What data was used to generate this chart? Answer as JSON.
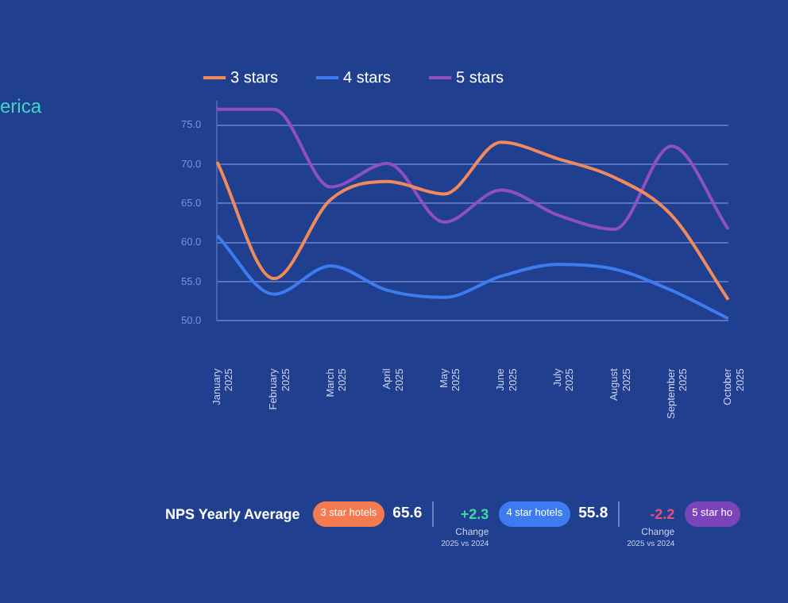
{
  "chart_data": [
    {
      "type": "other",
      "title": "erica"
    },
    {
      "type": "line",
      "categories": [
        "January 2025",
        "February 2025",
        "March 2025",
        "April 2025",
        "May 2025",
        "June 2025",
        "July 2025",
        "August 2025",
        "September 2025",
        "October 2025"
      ],
      "series": [
        {
          "name": "3 stars",
          "color": "#f08a5d",
          "values": [
            70.3,
            55.4,
            65.5,
            67.8,
            66.2,
            72.8,
            70.7,
            68.3,
            63.5,
            52.7
          ]
        },
        {
          "name": "4 stars",
          "color": "#3d7bf0",
          "values": [
            60.9,
            53.4,
            57.0,
            53.9,
            53.0,
            55.7,
            57.2,
            56.6,
            53.9,
            50.3
          ]
        },
        {
          "name": "5 stars",
          "color": "#8e4fc4",
          "values": [
            77.0,
            77.0,
            67.1,
            70.1,
            62.6,
            66.7,
            63.5,
            61.7,
            72.3,
            61.7
          ]
        }
      ],
      "ylim": [
        50,
        78
      ],
      "yticks": [
        {
          "value": 50,
          "label": "50.0"
        },
        {
          "value": 55,
          "label": "55.0"
        },
        {
          "value": 60,
          "label": "60.0"
        },
        {
          "value": 65,
          "label": "65.0"
        },
        {
          "value": 70,
          "label": "70.0"
        },
        {
          "value": 75,
          "label": "75.0"
        }
      ],
      "grid": "y",
      "legend": "top",
      "marker": "none",
      "line_style": "solid"
    },
    {
      "type": "other",
      "title": "NPS Yearly Average",
      "categories": [
        "3 star hotels",
        "4 star hotels",
        "5 star ho"
      ],
      "values": [
        65.6,
        55.8,
        null
      ],
      "data_labels": true,
      "colors": [
        "#f47a4f",
        "#3d7bf0",
        "#7b44b8"
      ],
      "annotations": [
        "+2.3",
        "Change",
        "2025 vs 2024",
        "-2.2",
        "Change",
        "2025 vs 2024"
      ]
    }
  ]
}
